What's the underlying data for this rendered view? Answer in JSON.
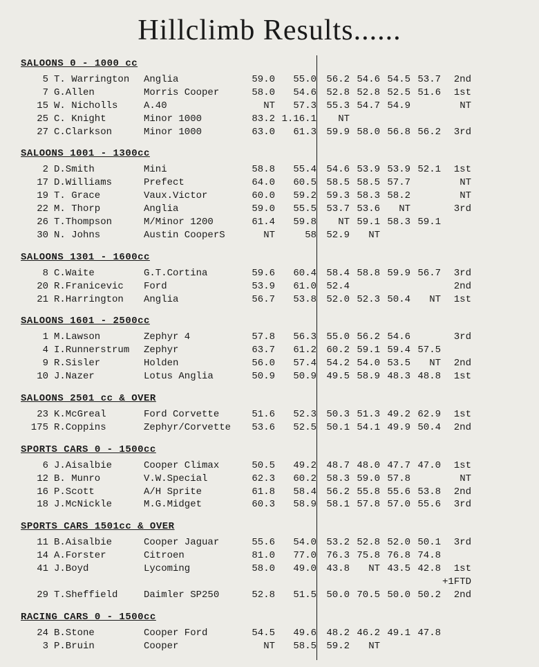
{
  "title": "Hillclimb Results......",
  "sections": [
    {
      "header": "SALOONS 0 - 1000 cc",
      "rows": [
        {
          "num": "5",
          "name": "T. Warrington",
          "car": "Anglia",
          "t1": "59.0",
          "t2": "55.0",
          "t3": "56.2",
          "t4": "54.6",
          "t5": "54.5",
          "t6": "53.7",
          "place": "2nd"
        },
        {
          "num": "7",
          "name": "G.Allen",
          "car": "Morris Cooper",
          "t1": "58.0",
          "t2": "54.6",
          "t3": "52.8",
          "t4": "52.8",
          "t5": "52.5",
          "t6": "51.6",
          "place": "1st"
        },
        {
          "num": "15",
          "name": "W. Nicholls",
          "car": "A.40",
          "t1": "NT",
          "t2": "57.3",
          "t3": "55.3",
          "t4": "54.7",
          "t5": "54.9",
          "t6": "",
          "place": "NT"
        },
        {
          "num": "25",
          "name": "C. Knight",
          "car": "Minor 1000",
          "t1": "83.2",
          "t2": "1.16.1",
          "t3": "NT",
          "t4": "",
          "t5": "",
          "t6": "",
          "place": ""
        },
        {
          "num": "27",
          "name": "C.Clarkson",
          "car": "Minor 1000",
          "t1": "63.0",
          "t2": "61.3",
          "t3": "59.9",
          "t4": "58.0",
          "t5": "56.8",
          "t6": "56.2",
          "place": "3rd"
        }
      ]
    },
    {
      "header": "SALOONS 1001 - 1300cc",
      "rows": [
        {
          "num": "2",
          "name": "D.Smith",
          "car": "Mini",
          "t1": "58.8",
          "t2": "55.4",
          "t3": "54.6",
          "t4": "53.9",
          "t5": "53.9",
          "t6": "52.1",
          "place": "1st"
        },
        {
          "num": "17",
          "name": "D.Williams",
          "car": "Prefect",
          "t1": "64.0",
          "t2": "60.5",
          "t3": "58.5",
          "t4": "58.5",
          "t5": "57.7",
          "t6": "",
          "place": "NT"
        },
        {
          "num": "19",
          "name": "T. Grace",
          "car": "Vaux.Victor",
          "t1": "60.0",
          "t2": "59.2",
          "t3": "59.3",
          "t4": "58.3",
          "t5": "58.2",
          "t6": "",
          "place": "NT"
        },
        {
          "num": "22",
          "name": "M. Thorp",
          "car": "Anglia",
          "t1": "59.0",
          "t2": "55.5",
          "t3": "53.7",
          "t4": "53.6",
          "t5": "NT",
          "t6": "",
          "place": "3rd"
        },
        {
          "num": "26",
          "name": "T.Thompson",
          "car": "M/Minor 1200",
          "t1": "61.4",
          "t2": "59.8",
          "t3": "NT",
          "t4": "59.1",
          "t5": "58.3",
          "t6": "59.1",
          "place": ""
        },
        {
          "num": "30",
          "name": "N. Johns",
          "car": "Austin CooperS",
          "t1": "NT",
          "t2": "58",
          "t3": "52.9",
          "t4": "NT",
          "t5": "",
          "t6": "",
          "place": ""
        }
      ]
    },
    {
      "header": "SALOONS 1301 - 1600cc",
      "rows": [
        {
          "num": "8",
          "name": "C.Waite",
          "car": "G.T.Cortina",
          "t1": "59.6",
          "t2": "60.4",
          "t3": "58.4",
          "t4": "58.8",
          "t5": "59.9",
          "t6": "56.7",
          "place": "3rd"
        },
        {
          "num": "20",
          "name": "R.Franicevic",
          "car": "Ford",
          "t1": "53.9",
          "t2": "61.0",
          "t3": "52.4",
          "t4": "",
          "t5": "",
          "t6": "",
          "place": "2nd"
        },
        {
          "num": "21",
          "name": "R.Harrington",
          "car": "Anglia",
          "t1": "56.7",
          "t2": "53.8",
          "t3": "52.0",
          "t4": "52.3",
          "t5": "50.4",
          "t6": "NT",
          "place": "1st"
        }
      ]
    },
    {
      "header": "SALOONS 1601 - 2500cc",
      "rows": [
        {
          "num": "1",
          "name": "M.Lawson",
          "car": "Zephyr 4",
          "t1": "57.8",
          "t2": "56.3",
          "t3": "55.0",
          "t4": "56.2",
          "t5": "54.6",
          "t6": "",
          "place": "3rd"
        },
        {
          "num": "4",
          "name": "I.Runnerstrum",
          "car": "Zephyr",
          "t1": "63.7",
          "t2": "61.2",
          "t3": "60.2",
          "t4": "59.1",
          "t5": "59.4",
          "t6": "57.5",
          "place": ""
        },
        {
          "num": "9",
          "name": "R.Sisler",
          "car": "Holden",
          "t1": "56.0",
          "t2": "57.4",
          "t3": "54.2",
          "t4": "54.0",
          "t5": "53.5",
          "t6": "NT",
          "place": "2nd"
        },
        {
          "num": "10",
          "name": "J.Nazer",
          "car": "Lotus Anglia",
          "t1": "50.9",
          "t2": "50.9",
          "t3": "49.5",
          "t4": "58.9",
          "t5": "48.3",
          "t6": "48.8",
          "place": "1st"
        }
      ]
    },
    {
      "header": "SALOONS 2501 cc & OVER",
      "rows": [
        {
          "num": "23",
          "name": "K.McGreal",
          "car": "Ford Corvette",
          "t1": "51.6",
          "t2": "52.3",
          "t3": "50.3",
          "t4": "51.3",
          "t5": "49.2",
          "t6": "62.9",
          "place": "1st"
        },
        {
          "num": "175",
          "name": "R.Coppins",
          "car": "Zephyr/Corvette",
          "t1": "53.6",
          "t2": "52.5",
          "t3": "50.1",
          "t4": "54.1",
          "t5": "49.9",
          "t6": "50.4",
          "place": "2nd"
        }
      ]
    },
    {
      "header": "SPORTS CARS 0 - 1500cc",
      "rows": [
        {
          "num": "6",
          "name": "J.Aisalbie",
          "car": "Cooper Climax",
          "t1": "50.5",
          "t2": "49.2",
          "t3": "48.7",
          "t4": "48.0",
          "t5": "47.7",
          "t6": "47.0",
          "place": "1st"
        },
        {
          "num": "12",
          "name": "B. Munro",
          "car": "V.W.Special",
          "t1": "62.3",
          "t2": "60.2",
          "t3": "58.3",
          "t4": "59.0",
          "t5": "57.8",
          "t6": "",
          "place": "NT"
        },
        {
          "num": "16",
          "name": "P.Scott",
          "car": "A/H Sprite",
          "t1": "61.8",
          "t2": "58.4",
          "t3": "56.2",
          "t4": "55.8",
          "t5": "55.6",
          "t6": "53.8",
          "place": "2nd"
        },
        {
          "num": "18",
          "name": "J.McNickle",
          "car": "M.G.Midget",
          "t1": "60.3",
          "t2": "58.9",
          "t3": "58.1",
          "t4": "57.8",
          "t5": "57.0",
          "t6": "55.6",
          "place": "3rd"
        }
      ]
    },
    {
      "header": "SPORTS CARS 1501cc & OVER",
      "rows": [
        {
          "num": "11",
          "name": "B.Aisalbie",
          "car": "Cooper Jaguar",
          "t1": "55.6",
          "t2": "54.0",
          "t3": "53.2",
          "t4": "52.8",
          "t5": "52.0",
          "t6": "50.1",
          "place": "3rd"
        },
        {
          "num": "14",
          "name": "A.Forster",
          "car": "Citroen",
          "t1": "81.0",
          "t2": "77.0",
          "t3": "76.3",
          "t4": "75.8",
          "t5": "76.8",
          "t6": "74.8",
          "place": ""
        },
        {
          "num": "41",
          "name": "J.Boyd",
          "car": "Lycoming",
          "t1": "58.0",
          "t2": "49.0",
          "t3": "43.8",
          "t4": "NT",
          "t5": "43.5",
          "t6": "42.8",
          "place": "1st"
        },
        {
          "num": "",
          "name": "",
          "car": "",
          "t1": "",
          "t2": "",
          "t3": "",
          "t4": "",
          "t5": "",
          "t6": "",
          "place": "+1FTD"
        },
        {
          "num": "29",
          "name": "T.Sheffield",
          "car": "Daimler SP250",
          "t1": "52.8",
          "t2": "51.5",
          "t3": "50.0",
          "t4": "70.5",
          "t5": "50.0",
          "t6": "50.2",
          "place": "2nd"
        }
      ]
    },
    {
      "header": "RACING CARS 0 - 1500cc",
      "rows": [
        {
          "num": "24",
          "name": "B.Stone",
          "car": "Cooper Ford",
          "t1": "54.5",
          "t2": "49.6",
          "t3": "48.2",
          "t4": "46.2",
          "t5": "49.1",
          "t6": "47.8",
          "place": ""
        },
        {
          "num": "3",
          "name": "P.Bruin",
          "car": "Cooper",
          "t1": "NT",
          "t2": "58.5",
          "t3": "59.2",
          "t4": "NT",
          "t5": "",
          "t6": "",
          "place": ""
        }
      ]
    }
  ]
}
